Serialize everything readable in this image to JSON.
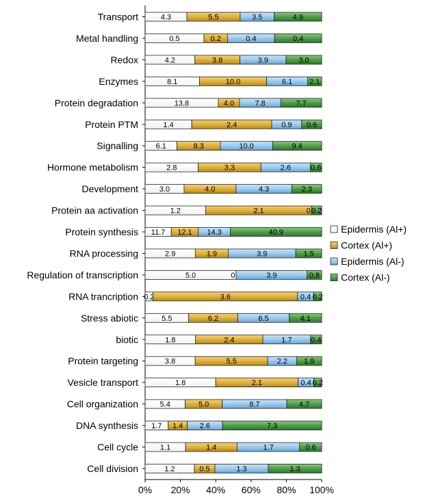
{
  "chart_data": {
    "type": "bar",
    "orientation": "horizontal",
    "stacked": "percent",
    "categories": [
      "Transport",
      "Metal handling",
      "Redox",
      "Enzymes",
      "Protein degradation",
      "Protein PTM",
      "Signalling",
      "Hormone metabolism",
      "Development",
      "Protein aa activation",
      "Protein synthesis",
      "RNA processing",
      "Regulation of transcription",
      "RNA trancription",
      "Stress abiotic",
      "biotic",
      "Protein targeting",
      "Vesicle transport",
      "Cell organization",
      "DNA synthesis",
      "Cell cycle",
      "Cell division"
    ],
    "series": [
      {
        "name": "Epidermis (Al+)",
        "color": "#ffffff",
        "values": [
          4.3,
          0.5,
          4.2,
          8.1,
          13.8,
          1.4,
          6.1,
          2.8,
          3.0,
          1.2,
          11.7,
          2.9,
          5.0,
          0.2,
          5.5,
          1.8,
          3.8,
          1.8,
          5.4,
          1.7,
          1.1,
          1.2
        ],
        "labels": [
          "4.3",
          "0.5",
          "4.2",
          "8.1",
          "13.8",
          "1.4",
          "6.1",
          "2.8",
          "3.0",
          "1.2",
          "11.7",
          "2.9",
          "5.0",
          "0.2",
          "5.5",
          "1.8",
          "3.8",
          "1.8",
          "5.4",
          "1.7",
          "1.1",
          "1.2"
        ]
      },
      {
        "name": "Cortex (Al+)",
        "color": "#e3b53e",
        "values": [
          5.5,
          0.2,
          3.8,
          10.0,
          4.0,
          2.4,
          8.3,
          3.3,
          4.0,
          2.1,
          12.1,
          1.9,
          0.0,
          3.6,
          6.2,
          2.4,
          5.5,
          2.1,
          5.0,
          1.4,
          1.4,
          0.5
        ],
        "labels": [
          "5.5",
          "0.2",
          "3.8",
          "10.0",
          "4.0",
          "2.4",
          "8.3",
          "3.3",
          "4.0",
          "2.1",
          "12.1",
          "1.9",
          "0.0",
          "3.6",
          "6.2",
          "2.4",
          "5.5",
          "2.1",
          "5.0",
          "1.4",
          "1.4",
          "0.5"
        ]
      },
      {
        "name": "Epidermis (Al-)",
        "color": "#9ccbec",
        "values": [
          3.5,
          0.4,
          3.9,
          6.1,
          7.8,
          0.9,
          10.0,
          2.6,
          4.3,
          0.0,
          14.3,
          3.9,
          3.9,
          0.4,
          6.5,
          1.7,
          2.2,
          0.4,
          8.7,
          2.6,
          1.7,
          1.3
        ],
        "labels": [
          "3.5",
          "0.4",
          "3.9",
          "6.1",
          "7.8",
          "0.9",
          "10.0",
          "2.6",
          "4.3",
          "0.0",
          "14.3",
          "3.9",
          "3.9",
          "0.4",
          "6.5",
          "1.7",
          "2.2",
          "0.4",
          "8.7",
          "2.6",
          "1.7",
          "1.3"
        ]
      },
      {
        "name": "Cortex (Al-)",
        "color": "#4c9a45",
        "values": [
          4.9,
          0.4,
          3.0,
          2.1,
          7.7,
          0.6,
          9.4,
          0.6,
          2.3,
          0.2,
          40.9,
          1.5,
          0.8,
          0.2,
          4.1,
          0.4,
          1.9,
          0.2,
          4.7,
          7.3,
          0.6,
          1.3
        ],
        "labels": [
          "4.9",
          "0.4",
          "3.0",
          "2.1",
          "7.7",
          "0.6",
          "9.4",
          "0.6",
          "2.3",
          "0.2",
          "40.9",
          "1.5",
          "0.8",
          "0.2",
          "4.1",
          "0.4",
          "1.9",
          "0.2",
          "4.7",
          "7.3",
          "0.6",
          "1.3"
        ]
      }
    ],
    "xaxis": {
      "ticks": [
        "0%",
        "20%",
        "40%",
        "60%",
        "80%",
        "100%"
      ],
      "range": [
        0,
        100
      ]
    },
    "legend_position": "right",
    "title": "",
    "xlabel": "",
    "ylabel": ""
  }
}
